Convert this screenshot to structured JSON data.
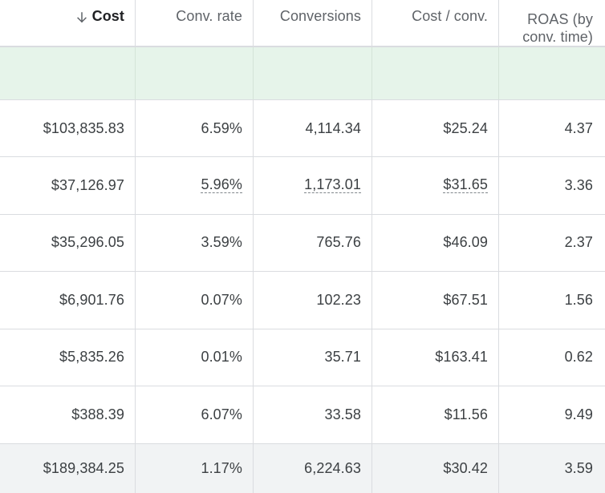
{
  "columns": [
    {
      "label": "Cost",
      "sorted": "descending"
    },
    {
      "label": "Conv. rate"
    },
    {
      "label": "Conversions"
    },
    {
      "label": "Cost / conv."
    },
    {
      "label_line1": "ROAS (by",
      "label_line2": "conv. time)"
    }
  ],
  "rows": [
    {
      "cost": "$103,835.83",
      "conv_rate": "6.59%",
      "conversions": "4,114.34",
      "cost_per_conv": "$25.24",
      "roas": "4.37"
    },
    {
      "cost": "$37,126.97",
      "conv_rate": "5.96%",
      "conversions": "1,173.01",
      "cost_per_conv": "$31.65",
      "roas": "3.36"
    },
    {
      "cost": "$35,296.05",
      "conv_rate": "3.59%",
      "conversions": "765.76",
      "cost_per_conv": "$46.09",
      "roas": "2.37"
    },
    {
      "cost": "$6,901.76",
      "conv_rate": "0.07%",
      "conversions": "102.23",
      "cost_per_conv": "$67.51",
      "roas": "1.56"
    },
    {
      "cost": "$5,835.26",
      "conv_rate": "0.01%",
      "conversions": "35.71",
      "cost_per_conv": "$163.41",
      "roas": "0.62"
    },
    {
      "cost": "$388.39",
      "conv_rate": "6.07%",
      "conversions": "33.58",
      "cost_per_conv": "$11.56",
      "roas": "9.49"
    }
  ],
  "total": {
    "cost": "$189,384.25",
    "conv_rate": "1.17%",
    "conversions": "6,224.63",
    "cost_per_conv": "$30.42",
    "roas": "3.59"
  },
  "icons": {
    "sort": "arrow-down-icon"
  },
  "colors": {
    "highlight_row": "#e6f4ea",
    "total_row": "#f1f3f4",
    "grid_line": "#dadce0"
  }
}
